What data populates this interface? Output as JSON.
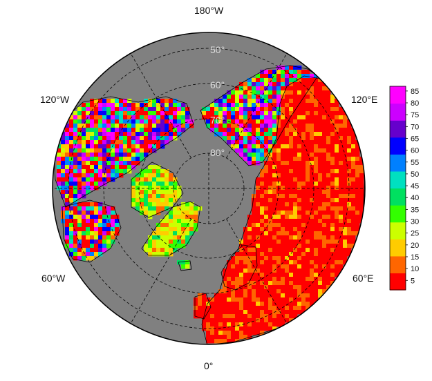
{
  "map": {
    "projection": "north-polar-stereographic",
    "ocean_color": "#808080",
    "graticule": {
      "longitude_labels": [
        "180°W",
        "120°E",
        "60°E",
        "0°",
        "60°W",
        "120°W"
      ],
      "latitude_labels": [
        "50°",
        "60°",
        "70°",
        "80°"
      ]
    }
  },
  "colorbar": {
    "min": 1,
    "max": 87,
    "tick_labels": [
      "85",
      "80",
      "75",
      "70",
      "65",
      "60",
      "55",
      "50",
      "45",
      "40",
      "35",
      "30",
      "25",
      "20",
      "15",
      "10",
      "5"
    ],
    "colors": [
      "#ff0000",
      "#ff6600",
      "#ffcc00",
      "#ccff00",
      "#33ff00",
      "#00e060",
      "#00e0c0",
      "#0080ff",
      "#0000ff",
      "#6600cc",
      "#cc00ff",
      "#ff00ff"
    ]
  }
}
